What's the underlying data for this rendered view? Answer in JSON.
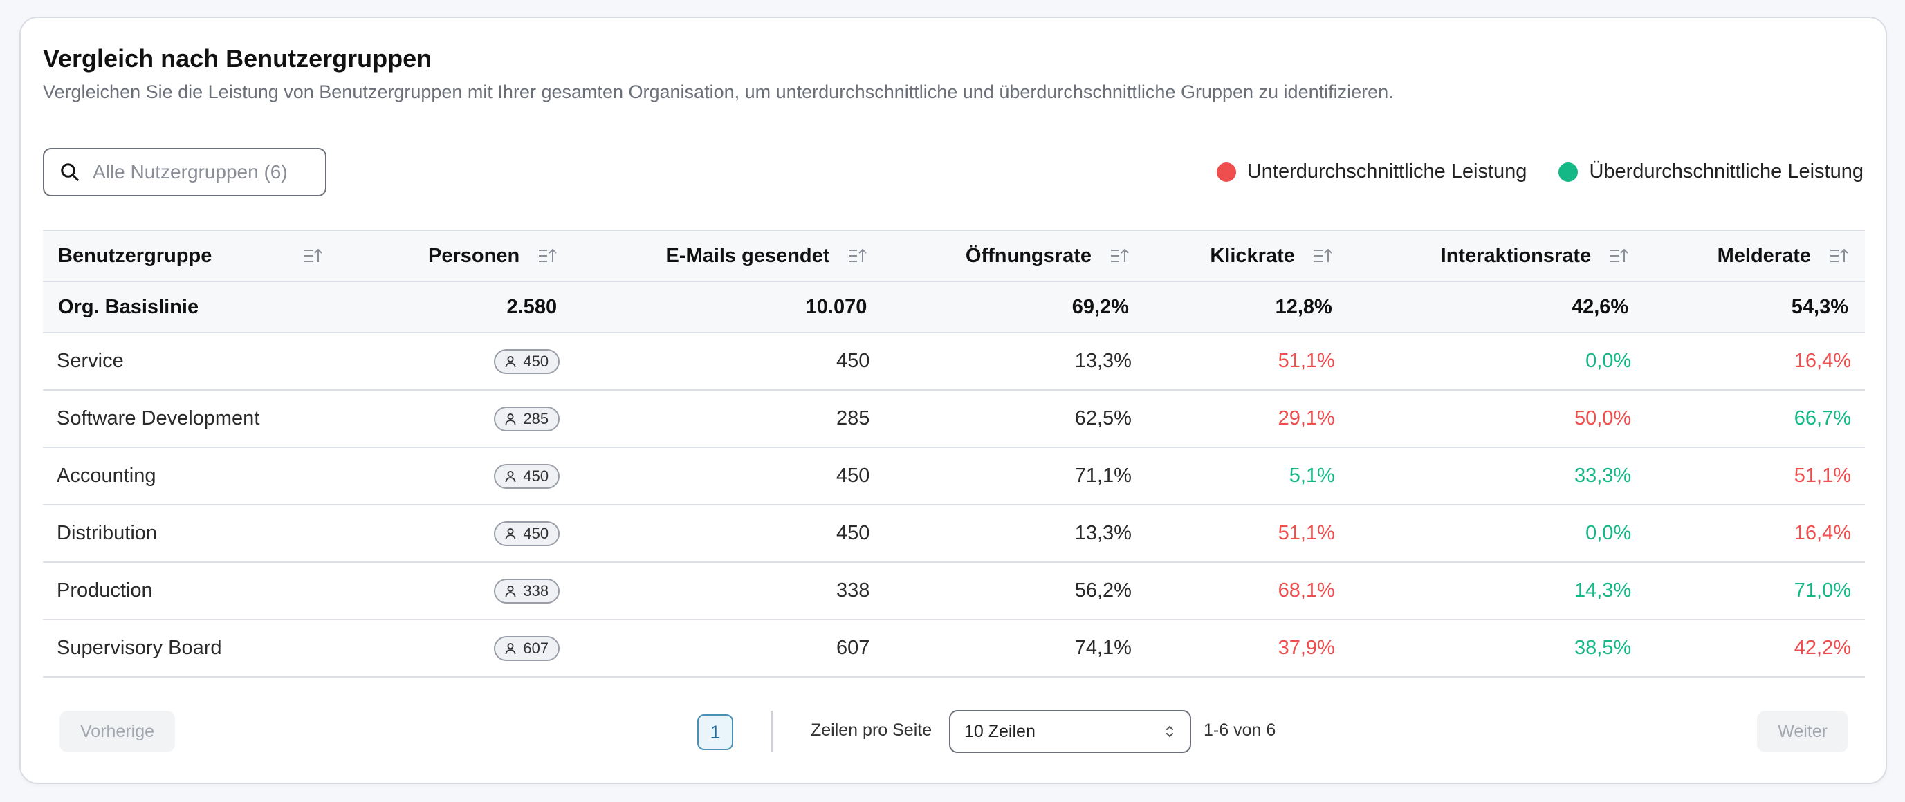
{
  "header": {
    "title": "Vergleich nach Benutzergruppen",
    "subtitle": "Vergleichen Sie die Leistung von Benutzergruppen mit Ihrer gesamten Organisation, um unterdurchschnittliche und überdurchschnittliche Gruppen zu identifizieren."
  },
  "search": {
    "placeholder": "Alle Nutzergruppen (6)",
    "icon": "search-icon"
  },
  "legend": {
    "below": {
      "label": "Unterdurchschnittliche Leistung",
      "color": "#ef4e4e"
    },
    "above": {
      "label": "Überdurchschnittliche Leistung",
      "color": "#14b886"
    }
  },
  "table": {
    "columns": [
      "Benutzergruppe",
      "Personen",
      "E-Mails gesendet",
      "Öffnungsrate",
      "Klickrate",
      "Interaktionsrate",
      "Melderate"
    ],
    "baseline": {
      "name": "Org. Basislinie",
      "people": "2.580",
      "emails": "10.070",
      "open": "69,2%",
      "click": "12,8%",
      "interaction": "42,6%",
      "report": "54,3%"
    },
    "rows": [
      {
        "name": "Service",
        "people": "450",
        "emails": "450",
        "open": "13,3%",
        "click": "51,1%",
        "click_status": "below",
        "interaction": "0,0%",
        "interaction_status": "above",
        "report": "16,4%",
        "report_status": "below"
      },
      {
        "name": "Software Development",
        "people": "285",
        "emails": "285",
        "open": "62,5%",
        "click": "29,1%",
        "click_status": "below",
        "interaction": "50,0%",
        "interaction_status": "below",
        "report": "66,7%",
        "report_status": "above"
      },
      {
        "name": "Accounting",
        "people": "450",
        "emails": "450",
        "open": "71,1%",
        "click": "5,1%",
        "click_status": "above",
        "interaction": "33,3%",
        "interaction_status": "above",
        "report": "51,1%",
        "report_status": "below"
      },
      {
        "name": "Distribution",
        "people": "450",
        "emails": "450",
        "open": "13,3%",
        "click": "51,1%",
        "click_status": "below",
        "interaction": "0,0%",
        "interaction_status": "above",
        "report": "16,4%",
        "report_status": "below"
      },
      {
        "name": "Production",
        "people": "338",
        "emails": "338",
        "open": "56,2%",
        "click": "68,1%",
        "click_status": "below",
        "interaction": "14,3%",
        "interaction_status": "above",
        "report": "71,0%",
        "report_status": "above"
      },
      {
        "name": "Supervisory Board",
        "people": "607",
        "emails": "607",
        "open": "74,1%",
        "click": "37,9%",
        "click_status": "below",
        "interaction": "38,5%",
        "interaction_status": "above",
        "report": "42,2%",
        "report_status": "below"
      }
    ]
  },
  "pagination": {
    "prev_label": "Vorherige",
    "next_label": "Weiter",
    "current_page": "1",
    "rows_per_page_label": "Zeilen pro Seite",
    "rows_per_page_value": "10 Zeilen",
    "range": "1-6 von 6"
  }
}
